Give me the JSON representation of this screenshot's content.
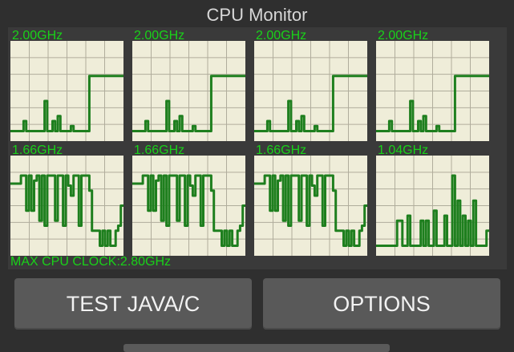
{
  "app": {
    "title": "CPU Monitor"
  },
  "colors": {
    "graph_bg": "#efedd9",
    "grid": "#b0ad9c",
    "line": "#1e7f1e",
    "label": "#19d219"
  },
  "cores": [
    {
      "freq_label": "2.00GHz",
      "series": [
        0.1,
        0.1,
        0.1,
        0.1,
        0.1,
        0.2,
        0.1,
        0.1,
        0.1,
        0.1,
        0.1,
        0.1,
        0.1,
        0.4,
        0.1,
        0.1,
        0.2,
        0.1,
        0.25,
        0.1,
        0.1,
        0.1,
        0.1,
        0.15,
        0.1,
        0.1,
        0.1,
        0.1,
        0.1,
        0.1,
        0.65,
        0.65,
        0.65,
        0.65,
        0.65,
        0.65,
        0.65,
        0.65,
        0.65,
        0.65,
        0.65,
        0.65,
        0.65,
        0.65
      ]
    },
    {
      "freq_label": "2.00GHz",
      "series": [
        0.1,
        0.1,
        0.1,
        0.1,
        0.1,
        0.2,
        0.1,
        0.1,
        0.1,
        0.1,
        0.1,
        0.1,
        0.1,
        0.4,
        0.1,
        0.1,
        0.2,
        0.1,
        0.25,
        0.1,
        0.1,
        0.1,
        0.1,
        0.15,
        0.1,
        0.1,
        0.1,
        0.1,
        0.1,
        0.1,
        0.65,
        0.65,
        0.65,
        0.65,
        0.65,
        0.65,
        0.65,
        0.65,
        0.65,
        0.65,
        0.65,
        0.65,
        0.65,
        0.65
      ]
    },
    {
      "freq_label": "2.00GHz",
      "series": [
        0.1,
        0.1,
        0.1,
        0.1,
        0.1,
        0.2,
        0.1,
        0.1,
        0.1,
        0.1,
        0.1,
        0.1,
        0.1,
        0.4,
        0.1,
        0.1,
        0.2,
        0.1,
        0.25,
        0.1,
        0.1,
        0.1,
        0.1,
        0.15,
        0.1,
        0.1,
        0.1,
        0.1,
        0.1,
        0.1,
        0.65,
        0.65,
        0.65,
        0.65,
        0.65,
        0.65,
        0.65,
        0.65,
        0.65,
        0.65,
        0.65,
        0.65,
        0.65,
        0.65
      ]
    },
    {
      "freq_label": "2.00GHz",
      "series": [
        0.1,
        0.1,
        0.1,
        0.1,
        0.1,
        0.2,
        0.1,
        0.1,
        0.1,
        0.1,
        0.1,
        0.1,
        0.1,
        0.4,
        0.1,
        0.1,
        0.2,
        0.1,
        0.25,
        0.1,
        0.1,
        0.1,
        0.1,
        0.15,
        0.1,
        0.1,
        0.1,
        0.1,
        0.1,
        0.1,
        0.65,
        0.65,
        0.65,
        0.65,
        0.65,
        0.65,
        0.65,
        0.65,
        0.65,
        0.65,
        0.65,
        0.65,
        0.65,
        0.65
      ]
    },
    {
      "freq_label": "1.66GHz",
      "series": [
        0.72,
        0.72,
        0.72,
        0.72,
        0.8,
        0.8,
        0.45,
        0.8,
        0.45,
        0.75,
        0.8,
        0.35,
        0.8,
        0.3,
        0.8,
        0.8,
        0.8,
        0.35,
        0.8,
        0.8,
        0.3,
        0.8,
        0.7,
        0.6,
        0.8,
        0.8,
        0.3,
        0.8,
        0.8,
        0.8,
        0.65,
        0.25,
        0.25,
        0.25,
        0.1,
        0.25,
        0.1,
        0.25,
        0.1,
        0.1,
        0.25,
        0.3,
        0.5,
        0.5
      ]
    },
    {
      "freq_label": "1.66GHz",
      "series": [
        0.72,
        0.72,
        0.72,
        0.72,
        0.8,
        0.8,
        0.45,
        0.8,
        0.45,
        0.75,
        0.8,
        0.35,
        0.8,
        0.3,
        0.8,
        0.8,
        0.8,
        0.35,
        0.8,
        0.8,
        0.3,
        0.8,
        0.7,
        0.6,
        0.8,
        0.8,
        0.3,
        0.8,
        0.8,
        0.8,
        0.65,
        0.25,
        0.25,
        0.25,
        0.1,
        0.25,
        0.1,
        0.25,
        0.1,
        0.1,
        0.25,
        0.3,
        0.5,
        0.5
      ]
    },
    {
      "freq_label": "1.66GHz",
      "series": [
        0.72,
        0.72,
        0.72,
        0.72,
        0.8,
        0.8,
        0.45,
        0.8,
        0.45,
        0.75,
        0.8,
        0.35,
        0.8,
        0.3,
        0.8,
        0.8,
        0.8,
        0.35,
        0.8,
        0.8,
        0.3,
        0.8,
        0.7,
        0.6,
        0.8,
        0.8,
        0.3,
        0.8,
        0.8,
        0.8,
        0.65,
        0.25,
        0.25,
        0.25,
        0.1,
        0.25,
        0.1,
        0.25,
        0.1,
        0.1,
        0.25,
        0.3,
        0.5,
        0.5
      ]
    },
    {
      "freq_label": "1.04GHz",
      "series": [
        0.1,
        0.1,
        0.1,
        0.1,
        0.1,
        0.1,
        0.1,
        0.1,
        0.35,
        0.35,
        0.1,
        0.1,
        0.4,
        0.1,
        0.1,
        0.1,
        0.1,
        0.35,
        0.1,
        0.35,
        0.1,
        0.1,
        0.45,
        0.1,
        0.1,
        0.1,
        0.4,
        0.1,
        0.1,
        0.8,
        0.1,
        0.55,
        0.1,
        0.4,
        0.1,
        0.35,
        0.1,
        0.55,
        0.1,
        0.1,
        0.1,
        0.1,
        0.25,
        0.25
      ]
    }
  ],
  "max_clock_label": "MAX CPU CLOCK:2.80GHz",
  "buttons": {
    "test_label": "TEST JAVA/C",
    "options_label": "OPTIONS"
  }
}
